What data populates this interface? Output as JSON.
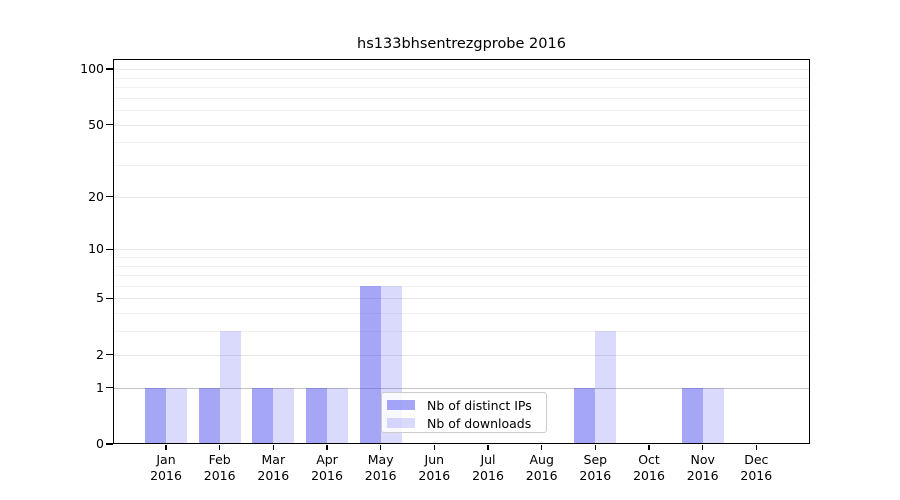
{
  "chart_data": {
    "type": "bar",
    "title": "hs133bhsentrezgprobe 2016",
    "x_axis": {
      "categories": [
        {
          "month": "Jan",
          "year": "2016"
        },
        {
          "month": "Feb",
          "year": "2016"
        },
        {
          "month": "Mar",
          "year": "2016"
        },
        {
          "month": "Apr",
          "year": "2016"
        },
        {
          "month": "May",
          "year": "2016"
        },
        {
          "month": "Jun",
          "year": "2016"
        },
        {
          "month": "Jul",
          "year": "2016"
        },
        {
          "month": "Aug",
          "year": "2016"
        },
        {
          "month": "Sep",
          "year": "2016"
        },
        {
          "month": "Oct",
          "year": "2016"
        },
        {
          "month": "Nov",
          "year": "2016"
        },
        {
          "month": "Dec",
          "year": "2016"
        }
      ]
    },
    "y_axis": {
      "scale": "log1p",
      "tick_values": [
        0,
        1,
        2,
        5,
        10,
        20,
        50,
        100
      ],
      "tick_labels": [
        "0",
        "1",
        "2",
        "5",
        "10",
        "20",
        "50",
        "100"
      ],
      "minor_gridline_values": [
        3,
        4,
        6,
        7,
        8,
        9,
        30,
        40,
        60,
        70,
        80,
        90
      ],
      "ylim": [
        0,
        113
      ]
    },
    "series": [
      {
        "name": "Nb of distinct IPs",
        "fill": "rgba(85,85,240,0.52)",
        "solid_hex": "#a6a6f6",
        "values": [
          1,
          1,
          1,
          1,
          6,
          0,
          0,
          0,
          1,
          0,
          1,
          0
        ]
      },
      {
        "name": "Nb of downloads",
        "fill": "rgba(85,85,240,0.22)",
        "solid_hex": "#ddddf9",
        "values": [
          1,
          3,
          1,
          1,
          6,
          0,
          0,
          0,
          3,
          0,
          1,
          0
        ]
      }
    ],
    "grid": "horizontal major+minor gridlines, translucent bars drawn over them",
    "legend": {
      "position": "bottom-center",
      "entries": [
        "Nb of distinct IPs",
        "Nb of downloads"
      ]
    }
  },
  "colors": {
    "spine": "#000000",
    "gridline_unit": "#c4c4c4",
    "gridline_major": "#e6e6e6",
    "gridline_minor": "#f1f1f1",
    "legend_border": "#cccccc",
    "background": "#ffffff"
  }
}
